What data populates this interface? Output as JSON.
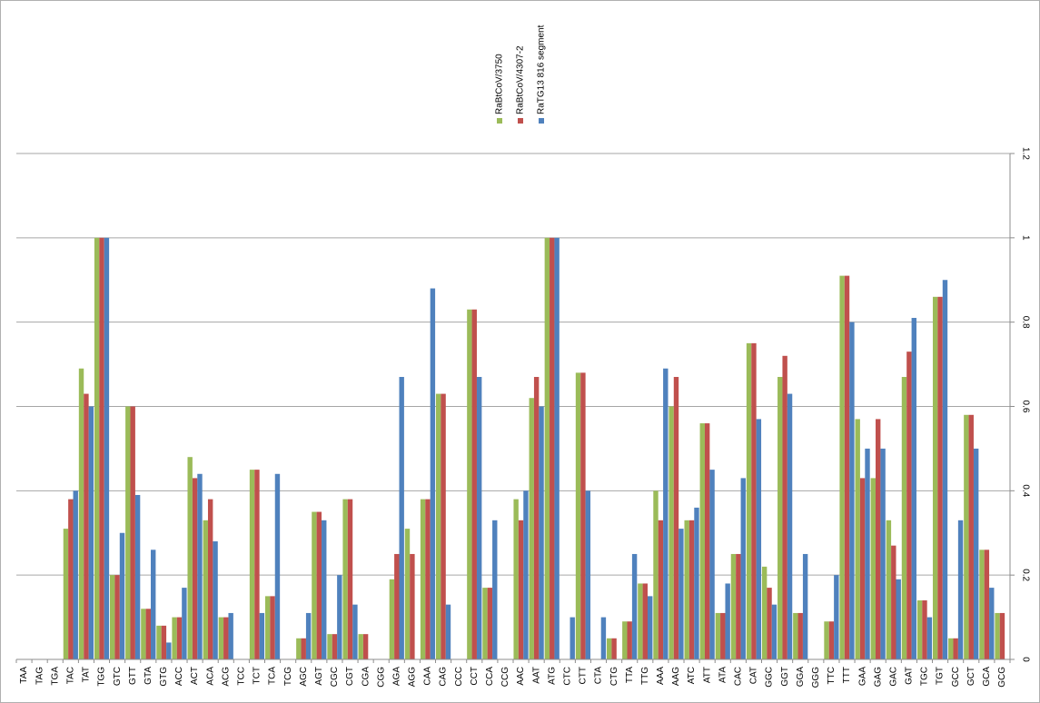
{
  "chart_data": {
    "type": "bar",
    "categories": [
      "TAA",
      "TAG",
      "TGA",
      "TAC",
      "TAT",
      "TGG",
      "GTC",
      "GTT",
      "GTA",
      "GTG",
      "ACC",
      "ACT",
      "ACA",
      "ACG",
      "TCC",
      "TCT",
      "TCA",
      "TCG",
      "AGC",
      "AGT",
      "CGC",
      "CGT",
      "CGA",
      "CGG",
      "AGA",
      "AGG",
      "CAA",
      "CAG",
      "CCC",
      "CCT",
      "CCA",
      "CCG",
      "AAC",
      "AAT",
      "ATG",
      "CTC",
      "CTT",
      "CTA",
      "CTG",
      "TTA",
      "TTG",
      "AAA",
      "AAG",
      "ATC",
      "ATT",
      "ATA",
      "CAC",
      "CAT",
      "GGC",
      "GGT",
      "GGA",
      "GGG",
      "TTC",
      "TTT",
      "GAA",
      "GAG",
      "GAC",
      "GAT",
      "TGC",
      "TGT",
      "GCC",
      "GCT",
      "GCA",
      "GCG"
    ],
    "series": [
      {
        "name": "RaBtCoV/3750",
        "color": "#9bbb59",
        "values": [
          0,
          0,
          0,
          0.31,
          0.69,
          1.0,
          0.2,
          0.6,
          0.12,
          0.08,
          0.1,
          0.48,
          0.33,
          0.1,
          0,
          0.45,
          0.15,
          0,
          0.05,
          0.35,
          0.06,
          0.38,
          0.06,
          0,
          0.19,
          0.31,
          0.38,
          0.63,
          0,
          0.83,
          0.17,
          0,
          0.38,
          0.62,
          1.0,
          0,
          0.68,
          0,
          0.05,
          0.09,
          0.18,
          0.4,
          0.6,
          0.33,
          0.56,
          0.11,
          0.25,
          0.75,
          0.22,
          0.67,
          0.11,
          0,
          0.09,
          0.91,
          0.57,
          0.43,
          0.33,
          0.67,
          0.14,
          0.86,
          0.05,
          0.58,
          0.26,
          0.11
        ]
      },
      {
        "name": "RaBtCoV/4307-2",
        "color": "#c0504d",
        "values": [
          0,
          0,
          0,
          0.38,
          0.63,
          1.0,
          0.2,
          0.6,
          0.12,
          0.08,
          0.1,
          0.43,
          0.38,
          0.1,
          0,
          0.45,
          0.15,
          0,
          0.05,
          0.35,
          0.06,
          0.38,
          0.06,
          0,
          0.25,
          0.25,
          0.38,
          0.63,
          0,
          0.83,
          0.17,
          0,
          0.33,
          0.67,
          1.0,
          0,
          0.68,
          0,
          0.05,
          0.09,
          0.18,
          0.33,
          0.67,
          0.33,
          0.56,
          0.11,
          0.25,
          0.75,
          0.17,
          0.72,
          0.11,
          0,
          0.09,
          0.91,
          0.43,
          0.57,
          0.27,
          0.73,
          0.14,
          0.86,
          0.05,
          0.58,
          0.26,
          0.11
        ]
      },
      {
        "name": "RaTG13 816 segment",
        "color": "#4f81bd",
        "values": [
          0,
          0,
          0,
          0.4,
          0.6,
          1.0,
          0.3,
          0.39,
          0.26,
          0.04,
          0.17,
          0.44,
          0.28,
          0.11,
          0,
          0.11,
          0.44,
          0,
          0.11,
          0.33,
          0.2,
          0.13,
          0,
          0,
          0.67,
          0,
          0.88,
          0.13,
          0,
          0.67,
          0.33,
          0,
          0.4,
          0.6,
          1.0,
          0.1,
          0.4,
          0.1,
          0,
          0.25,
          0.15,
          0.69,
          0.31,
          0.36,
          0.45,
          0.18,
          0.43,
          0.57,
          0.13,
          0.63,
          0.25,
          0,
          0.2,
          0.8,
          0.5,
          0.5,
          0.19,
          0.81,
          0.1,
          0.9,
          0.33,
          0.5,
          0.17,
          0
        ]
      }
    ],
    "yticks": [
      "0",
      "0.2",
      "0.4",
      "0.6",
      "0.8",
      "1",
      "1.2"
    ],
    "ylim": [
      0,
      1.2
    ],
    "grid": true,
    "legend_position": "top-center",
    "y_axis_side": "right"
  }
}
